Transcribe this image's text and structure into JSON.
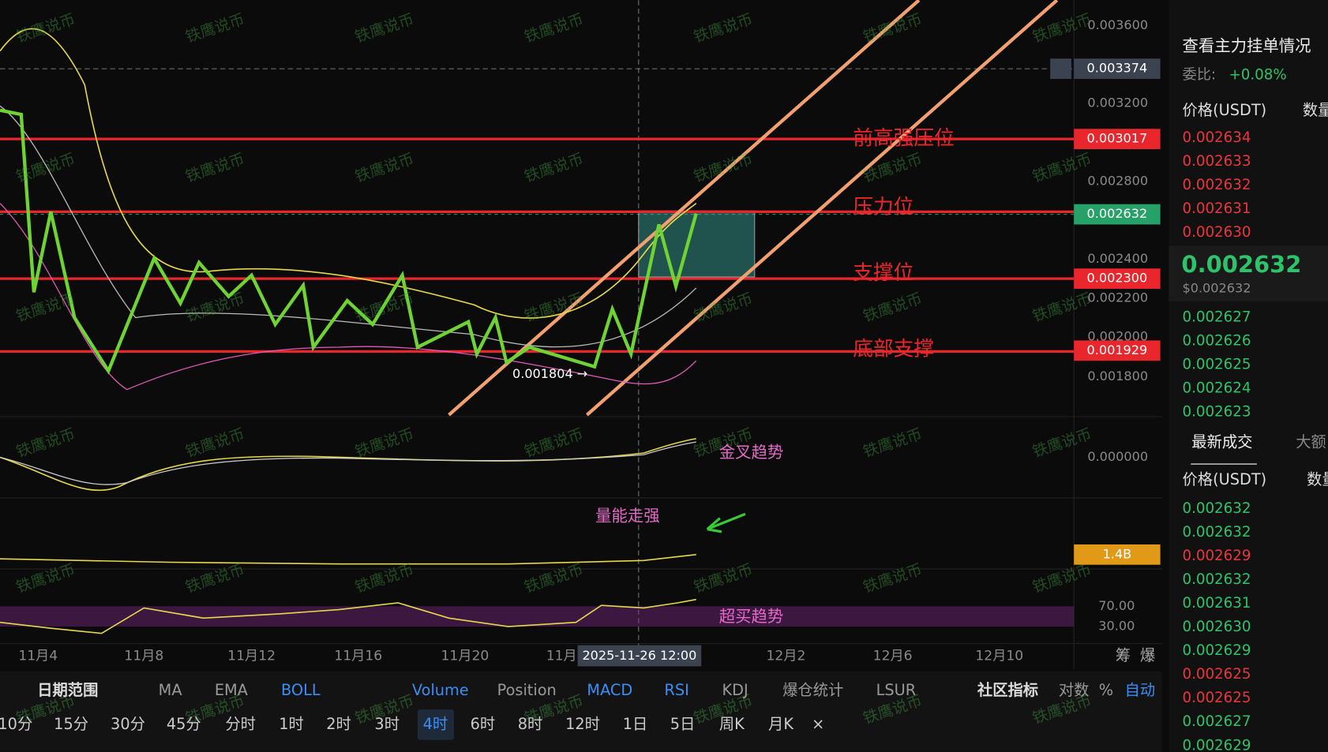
{
  "chart": {
    "watermark": "铁鹰说币",
    "price_ticks": [
      "0.003600",
      "0.003200",
      "0.002800",
      "0.002400",
      "0.002200",
      "0.002000",
      "0.001800"
    ],
    "price_tags": [
      "0.003374",
      "0.003017",
      "0.002632",
      "0.002300",
      "0.001929"
    ],
    "annotations": [
      "前高强压位",
      "压力位",
      "支撑位",
      "底部支撑"
    ],
    "low_label": "0.001804 →",
    "indicator_notes": [
      "金叉趋势",
      "量能走强",
      "超买趋势"
    ],
    "indicator_values": [
      "0.000000",
      "1.4B",
      "70.00",
      "30.00"
    ],
    "x_labels": [
      "11月4",
      "11月8",
      "11月12",
      "11月16",
      "11月20",
      "11月",
      "12月2",
      "12月6",
      "12月10"
    ],
    "crosshair_time": "2025-11-26 12:00",
    "side_icons": [
      "筹",
      "爆"
    ]
  },
  "toolbar": {
    "indicators": [
      "日期范围",
      "MA",
      "EMA",
      "BOLL",
      "Volume",
      "Position",
      "MACD",
      "RSI",
      "KDJ",
      "爆仓统计",
      "LSUR",
      "社区指标",
      "对数",
      "%",
      "自动"
    ],
    "intervals": [
      "10分",
      "15分",
      "30分",
      "45分",
      "分时",
      "1时",
      "2时",
      "3时",
      "4时",
      "6时",
      "8时",
      "12时",
      "1日",
      "5日",
      "周K",
      "月K",
      "×"
    ]
  },
  "order_book": {
    "title": "查看主力挂单情况",
    "ratio_label": "委比:",
    "ratio": "+0.08%",
    "header": [
      "价格(USDT)",
      "数量"
    ],
    "asks": [
      "0.002634",
      "0.002633",
      "0.002632",
      "0.002631",
      "0.002630"
    ],
    "last": "0.002632",
    "last_usd": "$0.002632",
    "bids": [
      "0.002627",
      "0.002626",
      "0.002625",
      "0.002624",
      "0.002623"
    ],
    "tabs": [
      "最新成交",
      "大额"
    ],
    "trade_header": [
      "价格(USDT)",
      "数量"
    ],
    "trades": [
      "0.002632",
      "0.002632",
      "0.002629",
      "0.002632",
      "0.002631",
      "0.002630",
      "0.002629",
      "0.002625",
      "0.002625",
      "0.002627",
      "0.002629"
    ]
  }
}
